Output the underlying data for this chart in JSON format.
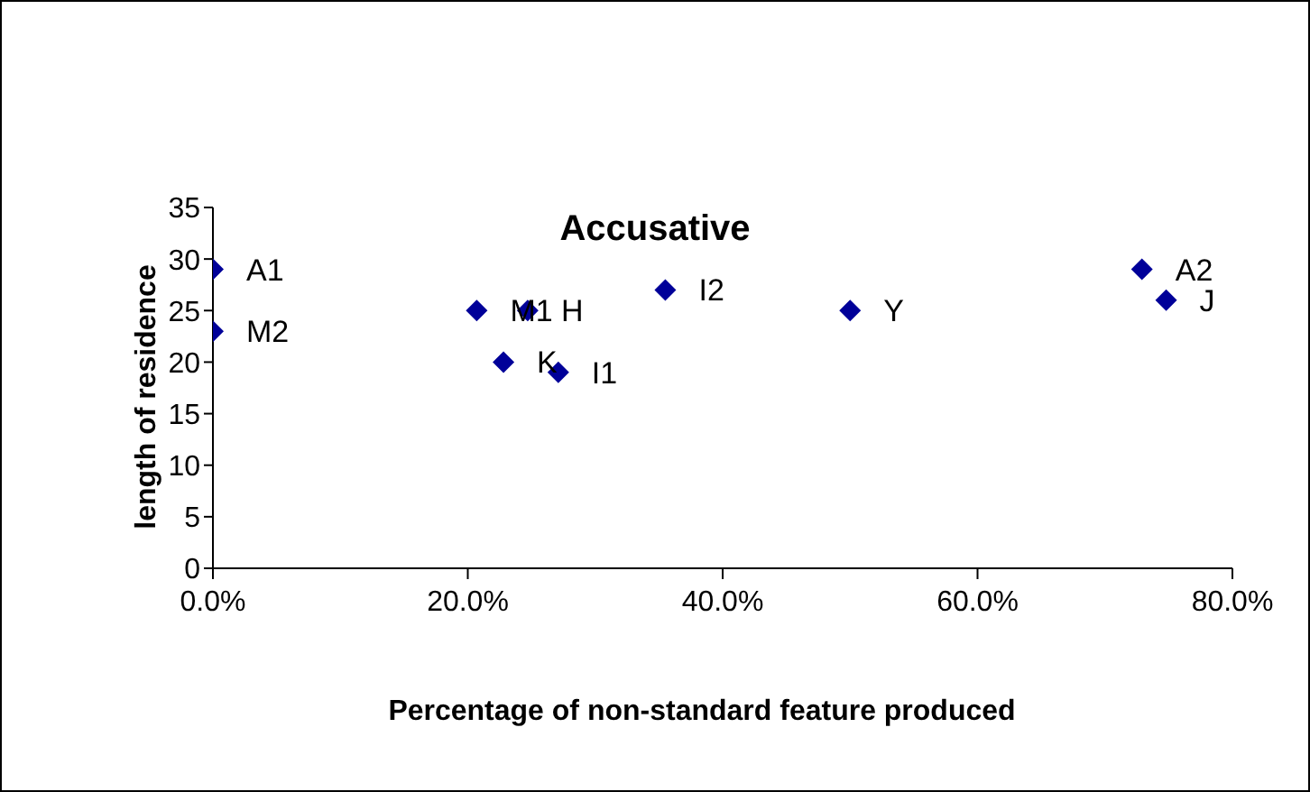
{
  "chart_data": {
    "type": "scatter",
    "title": "Accusative",
    "xlabel": "Percentage of non-standard feature produced",
    "ylabel": "length of residence",
    "x": [
      0,
      0,
      20.7,
      24.7,
      22.8,
      27.1,
      35.5,
      50.0,
      72.9,
      74.8
    ],
    "values": [
      29,
      23,
      25,
      25,
      20,
      19,
      27,
      25,
      29,
      26
    ],
    "value_labels": [
      "A1",
      "M2",
      "M1",
      "H",
      "K",
      "I1",
      "I2",
      "Y",
      "A2",
      "J"
    ],
    "color": "#000099",
    "marker": "diamond",
    "xlim": [
      0,
      80
    ],
    "xticks": [
      {
        "value": 0,
        "label": "0.0%"
      },
      {
        "value": 20,
        "label": "20.0%"
      },
      {
        "value": 40,
        "label": "40.0%"
      },
      {
        "value": 60,
        "label": "60.0%"
      },
      {
        "value": 80,
        "label": "80.0%"
      }
    ],
    "ylim": [
      0,
      35
    ],
    "yticks": [
      0,
      5,
      10,
      15,
      20,
      25,
      30,
      35
    ],
    "grid": false
  }
}
